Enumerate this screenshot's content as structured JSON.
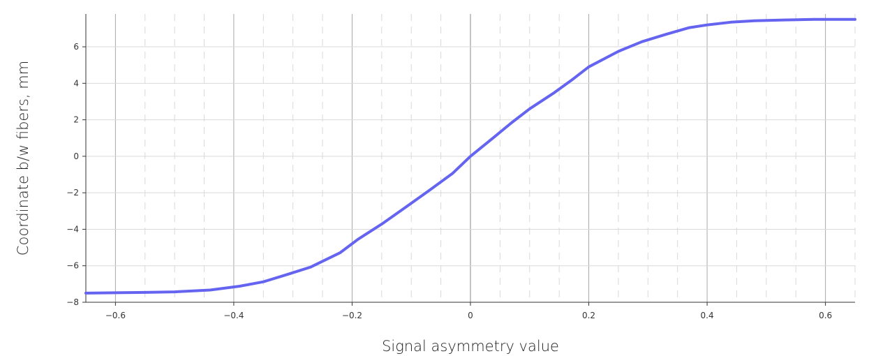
{
  "chart_data": {
    "type": "line",
    "title": "",
    "xlabel": "Signal asymmetry value",
    "ylabel": "Coordinate b/w fibers, mm",
    "xlim": [
      -0.65,
      0.65
    ],
    "ylim": [
      -8,
      7.8
    ],
    "x_ticks": [
      -0.6,
      -0.4,
      -0.2,
      0,
      0.2,
      0.4,
      0.6
    ],
    "x_tick_labels": [
      "−0.6",
      "−0.4",
      "−0.2",
      "0",
      "0.2",
      "0.4",
      "0.6"
    ],
    "y_ticks": [
      -8,
      -6,
      -4,
      -2,
      0,
      2,
      4,
      6
    ],
    "y_tick_labels": [
      "−8",
      "−6",
      "−4",
      "−2",
      "0",
      "2",
      "4",
      "6"
    ],
    "x_minor_step": 0.05,
    "grid": true,
    "legend": "none",
    "series": [
      {
        "color": "#6464f0",
        "x": [
          -0.65,
          -0.6,
          -0.55,
          -0.5,
          -0.44,
          -0.39,
          -0.35,
          -0.31,
          -0.27,
          -0.22,
          -0.19,
          -0.15,
          -0.11,
          -0.07,
          -0.03,
          0,
          0.04,
          0.07,
          0.1,
          0.14,
          0.17,
          0.2,
          0.25,
          0.29,
          0.33,
          0.37,
          0.4,
          0.44,
          0.48,
          0.53,
          0.58,
          0.65
        ],
        "y": [
          -7.5,
          -7.48,
          -7.46,
          -7.43,
          -7.33,
          -7.12,
          -6.88,
          -6.48,
          -6.07,
          -5.28,
          -4.55,
          -3.72,
          -2.8,
          -1.88,
          -0.93,
          0,
          1.05,
          1.85,
          2.6,
          3.45,
          4.15,
          4.9,
          5.75,
          6.28,
          6.68,
          7.05,
          7.2,
          7.35,
          7.43,
          7.47,
          7.5,
          7.5
        ]
      }
    ]
  }
}
